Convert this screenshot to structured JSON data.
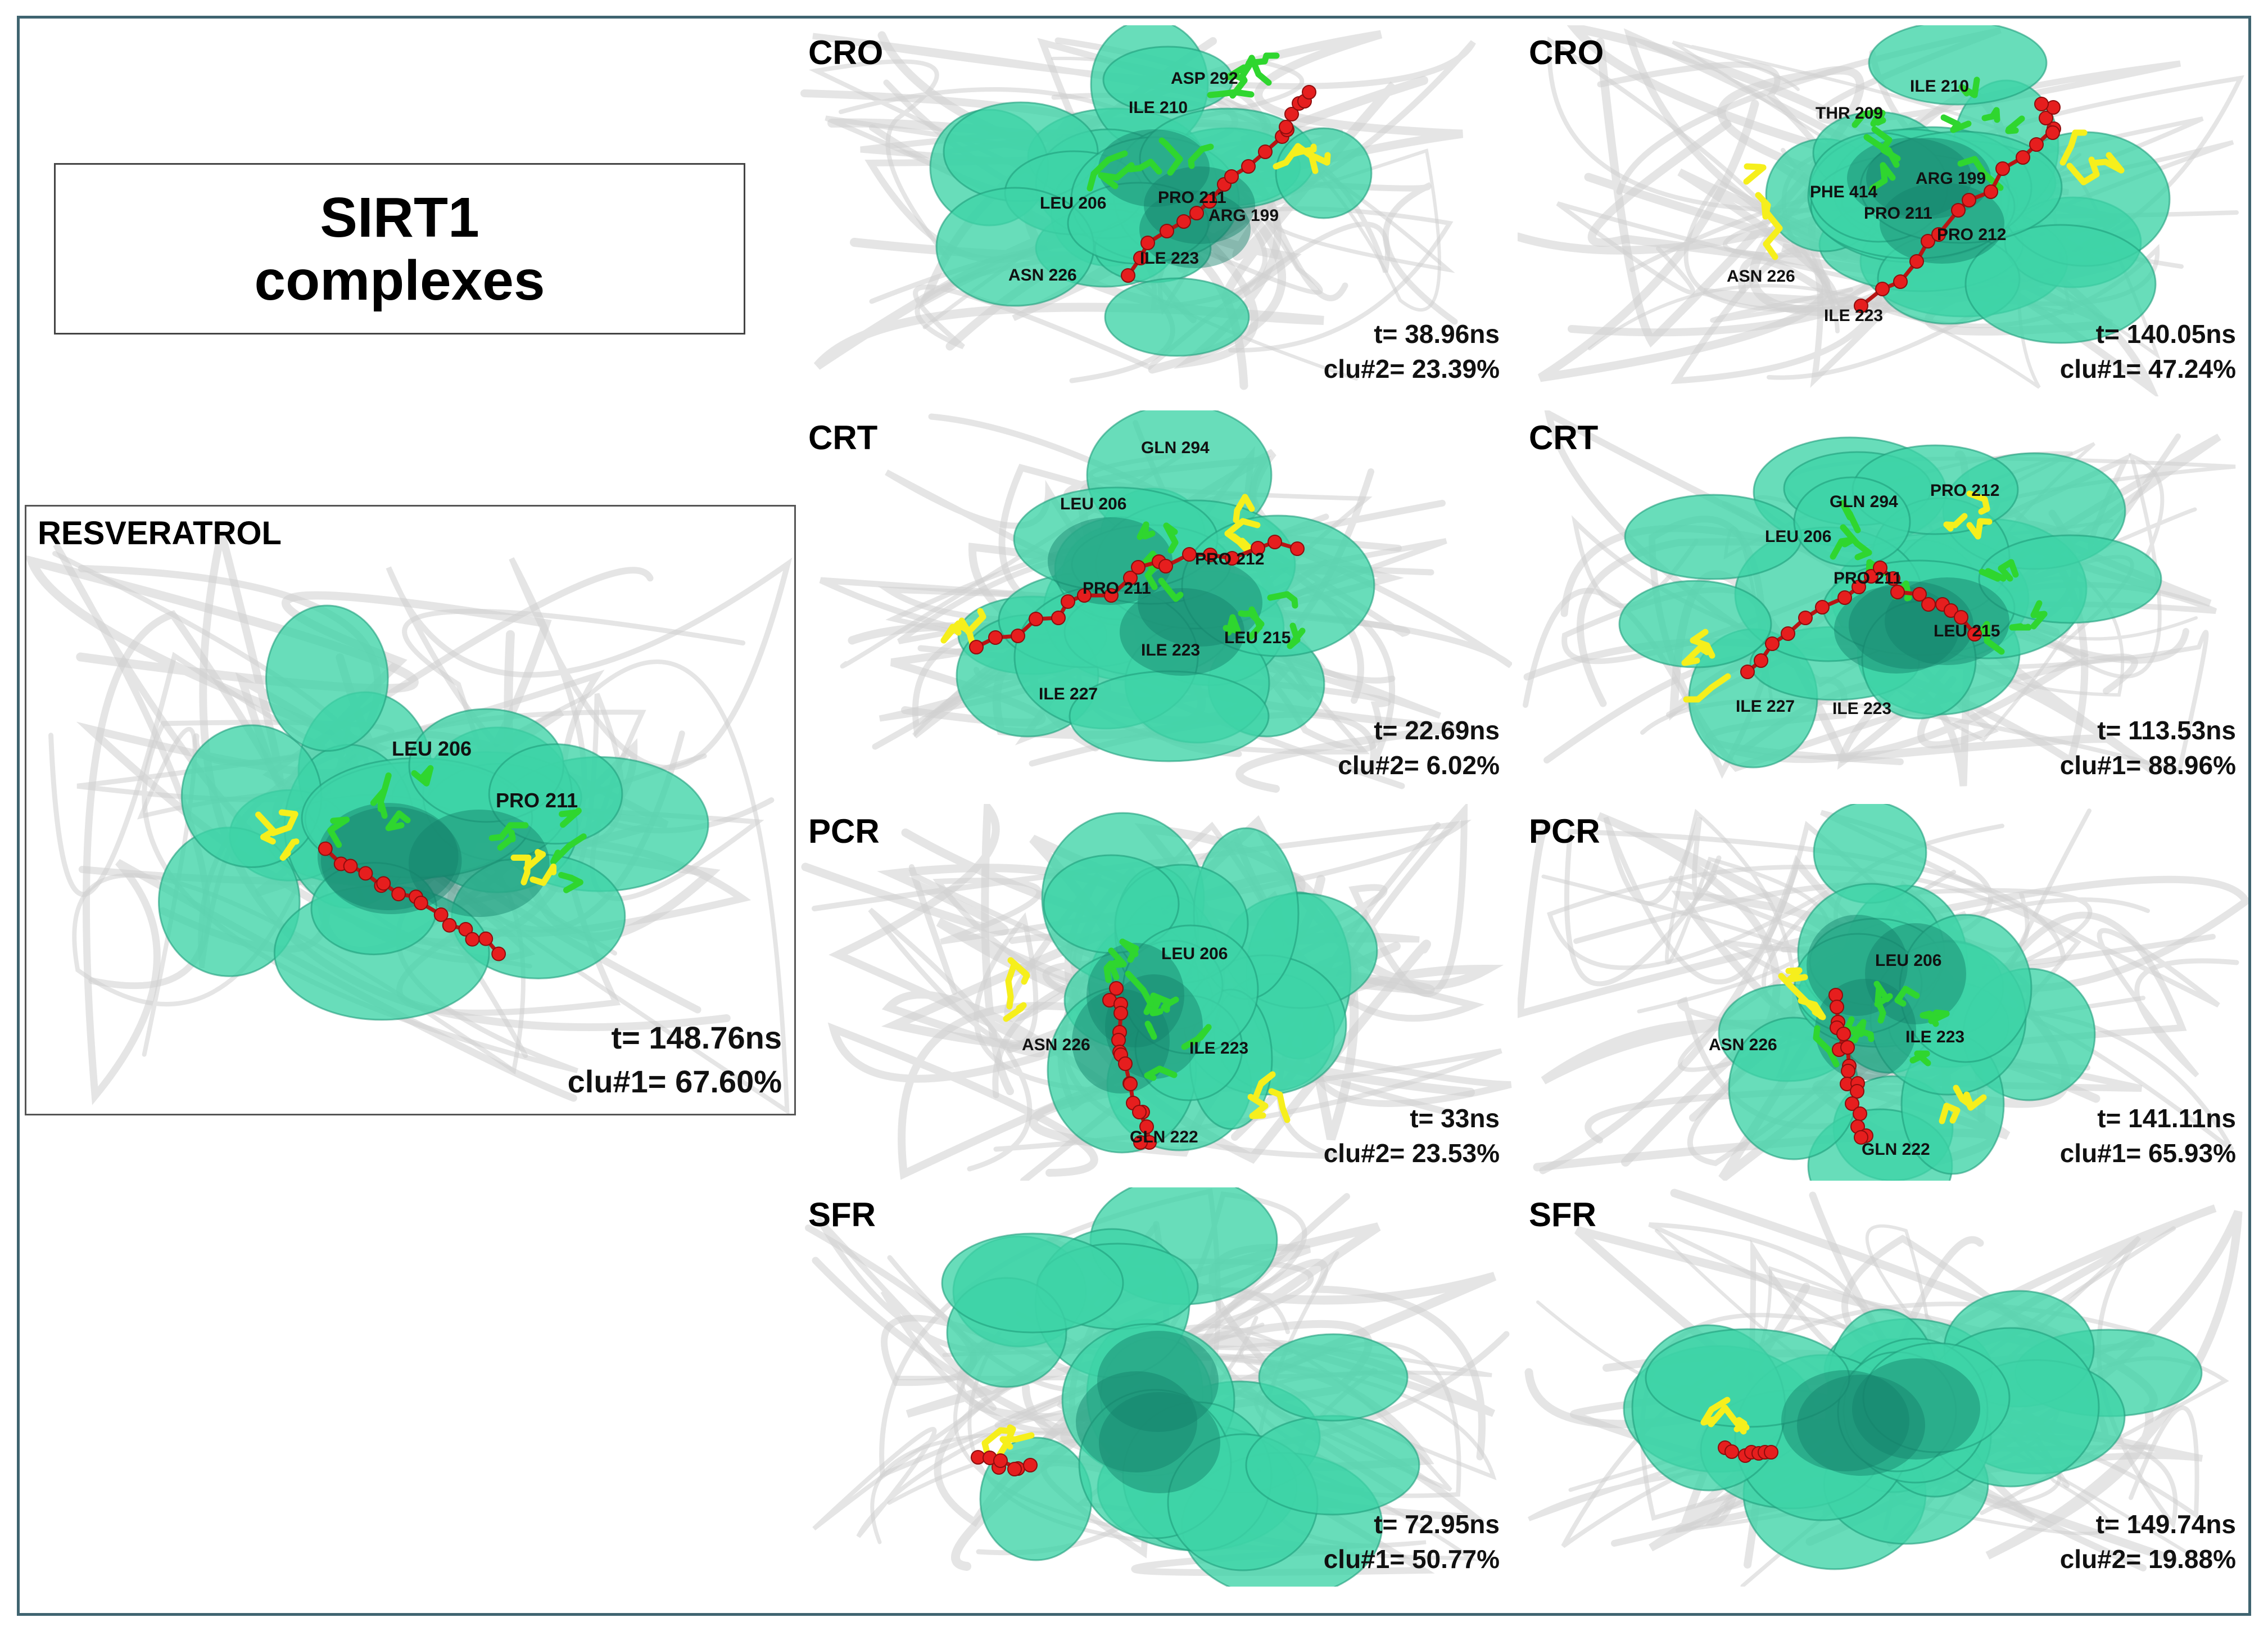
{
  "title": {
    "line1": "SIRT1",
    "line2": "complexes"
  },
  "colors": {
    "pocket": "#3ed4a6",
    "pocket_dark": "#15806a",
    "residue": "#2fd62f",
    "ligand": "#e61e1e",
    "cofactor": "#f6ef1c",
    "ribbon": "#cfcfcf",
    "frame": "#3f6470"
  },
  "resveratrol": {
    "label": "RESVERATROL",
    "time": "t= 148.76ns",
    "cluster": "clu#1= 67.60%",
    "residues": [
      "LEU 206",
      "PRO 211"
    ]
  },
  "panels": [
    {
      "label": "CRO",
      "time": "t= 38.96ns",
      "cluster": "clu#2= 23.39%",
      "residues": [
        "ASP 292",
        "ILE 210",
        "LEU 206",
        "PRO 211",
        "ARG 199",
        "ILE 223",
        "ASN 226"
      ]
    },
    {
      "label": "CRO",
      "time": "t= 140.05ns",
      "cluster": "clu#1= 47.24%",
      "residues": [
        "THR 209",
        "ILE 210",
        "PHE 414",
        "ARG 199",
        "PRO 211",
        "PRO 212",
        "ASN 226",
        "ILE 223"
      ]
    },
    {
      "label": "CRT",
      "time": "t= 22.69ns",
      "cluster": "clu#2= 6.02%",
      "residues": [
        "GLN 294",
        "LEU 206",
        "PRO 212",
        "PRO 211",
        "LEU 215",
        "ILE 223",
        "ILE 227"
      ]
    },
    {
      "label": "CRT",
      "time": "t= 113.53ns",
      "cluster": "clu#1= 88.96%",
      "residues": [
        "PRO 212",
        "GLN 294",
        "LEU 206",
        "PRO 211",
        "LEU 215",
        "ILE 227",
        "ILE 223"
      ]
    },
    {
      "label": "PCR",
      "time": "t= 33ns",
      "cluster": "clu#2= 23.53%",
      "residues": [
        "LEU 206",
        "ASN 226",
        "ILE 223",
        "GLN 222"
      ]
    },
    {
      "label": "PCR",
      "time": "t= 141.11ns",
      "cluster": "clu#1= 65.93%",
      "residues": [
        "LEU 206",
        "ASN 226",
        "ILE 223",
        "GLN 222"
      ]
    },
    {
      "label": "SFR",
      "time": "t= 72.95ns",
      "cluster": "clu#1= 50.77%",
      "residues": []
    },
    {
      "label": "SFR",
      "time": "t= 149.74ns",
      "cluster": "clu#2= 19.88%",
      "residues": []
    }
  ]
}
